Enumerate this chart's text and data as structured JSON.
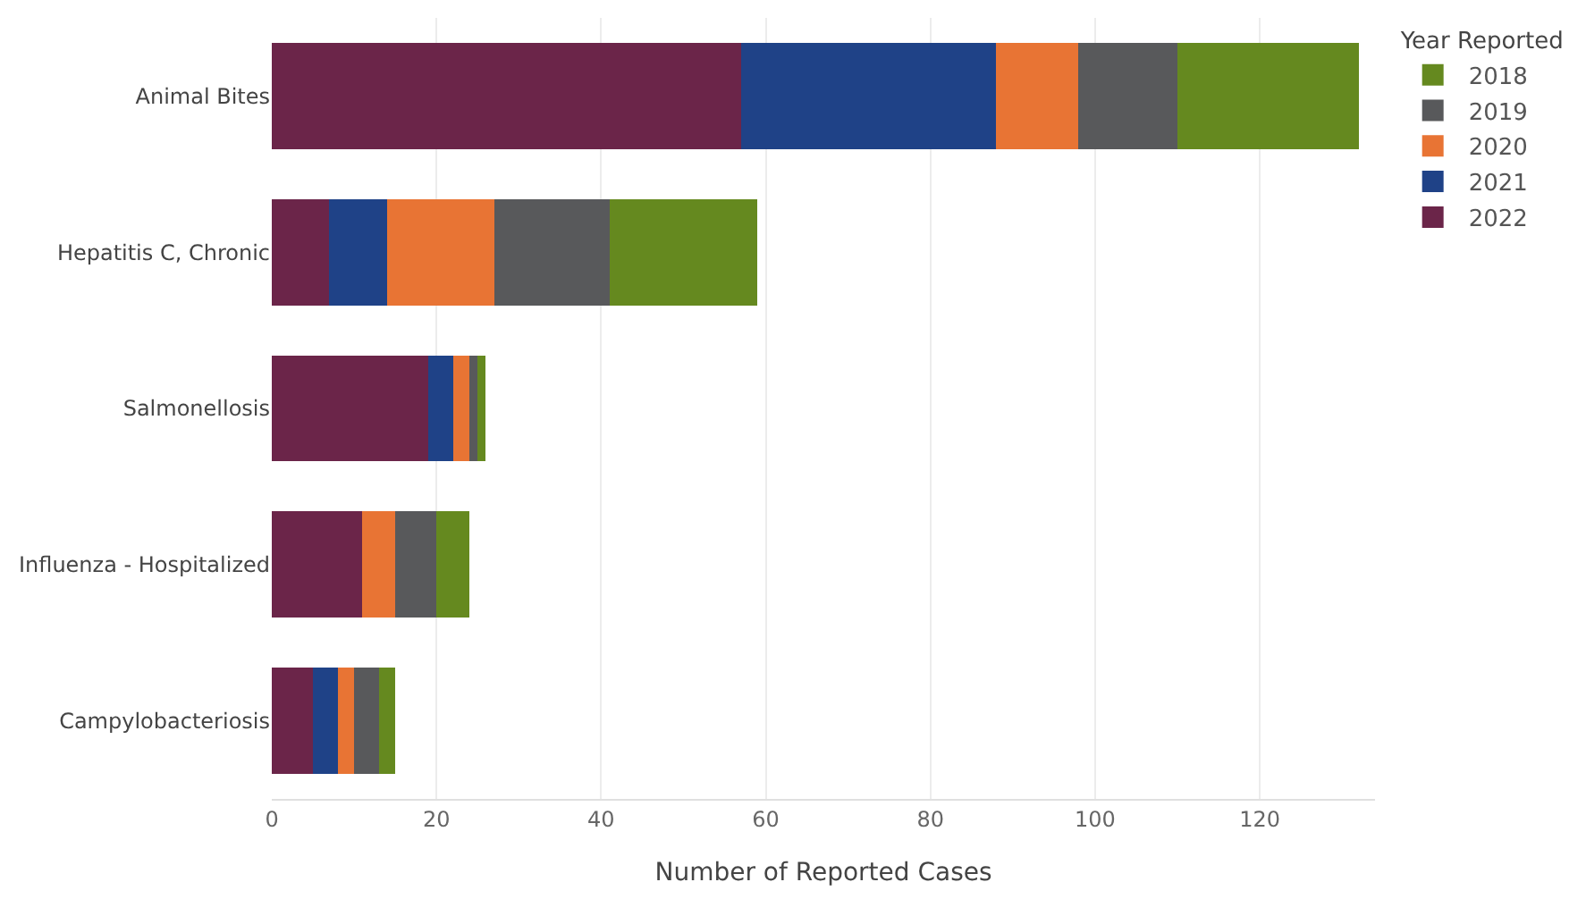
{
  "chart_data": {
    "type": "bar",
    "orientation": "horizontal",
    "stacked": true,
    "categories": [
      "Animal Bites",
      "Hepatitis C, Chronic",
      "Salmonellosis",
      "Influenza - Hospitalized",
      "Campylobacteriosis"
    ],
    "series": [
      {
        "name": "2022",
        "color": "#6b2549",
        "values": [
          57,
          7,
          19,
          11,
          5
        ]
      },
      {
        "name": "2021",
        "color": "#1f4287",
        "values": [
          31,
          7,
          3,
          0,
          3
        ]
      },
      {
        "name": "2020",
        "color": "#e87434",
        "values": [
          10,
          13,
          2,
          4,
          2
        ]
      },
      {
        "name": "2019",
        "color": "#58595b",
        "values": [
          12,
          14,
          1,
          5,
          3
        ]
      },
      {
        "name": "2018",
        "color": "#65891f",
        "values": [
          22,
          18,
          1,
          4,
          2
        ]
      }
    ],
    "xlabel": "Number of Reported Cases",
    "legend_title": "Year Reported",
    "xlim": [
      0,
      134
    ],
    "xticks": [
      0,
      20,
      40,
      60,
      80,
      100,
      120
    ],
    "grid": "x",
    "legend": "top right"
  }
}
